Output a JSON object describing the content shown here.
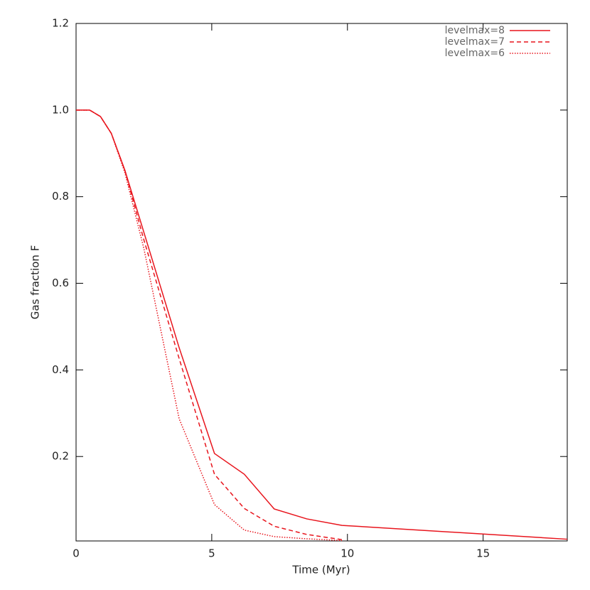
{
  "chart_data": {
    "type": "line",
    "xlabel": "Time (Myr)",
    "ylabel": "Gas fraction F",
    "xlim": [
      0,
      18.1
    ],
    "ylim": [
      0.005,
      1.2
    ],
    "xticks": [
      0,
      5,
      10,
      15
    ],
    "yticks": [
      0.2,
      0.4,
      0.6,
      0.8,
      {
        "value": 1.0,
        "label": "1.0"
      },
      1.2
    ],
    "legend": "upper right",
    "series": [
      {
        "name": "levelmax=8",
        "color": "#e8141c",
        "style": "solid",
        "x": [
          0,
          0.5,
          0.9,
          1.3,
          1.8,
          3.8,
          5.1,
          6.2,
          7.3,
          8.5,
          9.8,
          18.1
        ],
        "values": [
          1.0,
          1.0,
          0.985,
          0.946,
          0.861,
          0.451,
          0.207,
          0.159,
          0.079,
          0.056,
          0.041,
          0.009
        ]
      },
      {
        "name": "levelmax=7",
        "color": "#e8141c",
        "style": "dashed",
        "x": [
          0,
          0.5,
          0.9,
          1.3,
          1.8,
          2.5,
          3.8,
          5.1,
          6.2,
          7.3,
          8.5,
          9.8
        ],
        "values": [
          1.0,
          1.0,
          0.985,
          0.946,
          0.86,
          0.7,
          0.426,
          0.159,
          0.08,
          0.039,
          0.02,
          0.008
        ]
      },
      {
        "name": "levelmax=6",
        "color": "#e8141c",
        "style": "dotted",
        "x": [
          0,
          0.5,
          0.9,
          1.3,
          1.8,
          2.5,
          3.8,
          5.1,
          6.2,
          7.3,
          8.5,
          9.8
        ],
        "values": [
          1.0,
          1.0,
          0.985,
          0.946,
          0.855,
          0.68,
          0.287,
          0.089,
          0.03,
          0.015,
          0.01,
          0.006
        ]
      }
    ]
  }
}
